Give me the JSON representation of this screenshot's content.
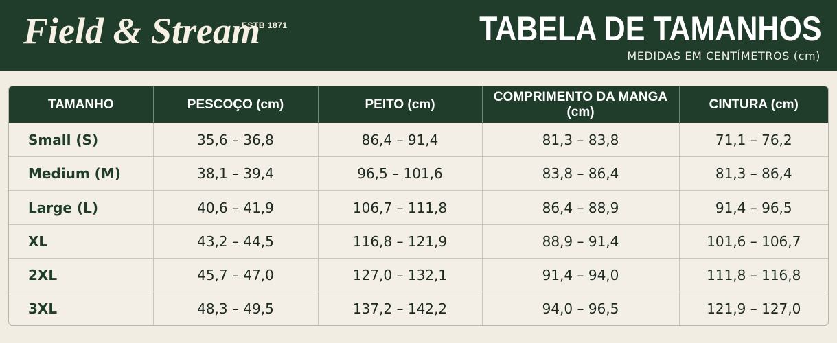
{
  "header": {
    "logo": "Field & Stream",
    "established": "ESTB 1871",
    "title": "TABELA DE TAMANHOS",
    "subtitle": "MEDIDAS EM CENTÍMETROS (cm)"
  },
  "table": {
    "columns": [
      "TAMANHO",
      "PESCOÇO (cm)",
      "PEITO (cm)",
      "COMPRIMENTO DA MANGA (cm)",
      "CINTURA (cm)"
    ],
    "rows": [
      [
        "Small (S)",
        "35,6 – 36,8",
        "86,4 – 91,4",
        "81,3 – 83,8",
        "71,1 – 76,2"
      ],
      [
        "Medium (M)",
        "38,1 – 39,4",
        "96,5 – 101,6",
        "83,8 – 86,4",
        "81,3 – 86,4"
      ],
      [
        "Large (L)",
        "40,6 – 41,9",
        "106,7 – 111,8",
        "86,4 – 88,9",
        "91,4 – 96,5"
      ],
      [
        "XL",
        "43,2 – 44,5",
        "116,8 – 121,9",
        "88,9 – 91,4",
        "101,6 – 106,7"
      ],
      [
        "2XL",
        "45,7 – 47,0",
        "127,0 – 132,1",
        "91,4 – 94,0",
        "111,8 – 116,8"
      ],
      [
        "3XL",
        "48,3 – 49,5",
        "137,2 – 142,2",
        "94,0 – 96,5",
        "121,9 – 127,0"
      ]
    ]
  }
}
